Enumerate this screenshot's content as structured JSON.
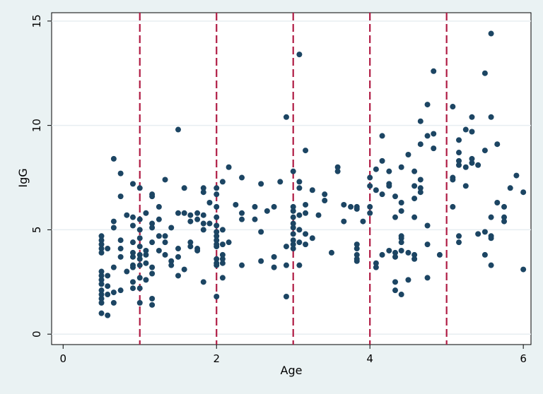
{
  "chart_data": {
    "type": "scatter",
    "xlabel": "Age",
    "ylabel": "IgG",
    "xlim": [
      -0.15,
      6.1
    ],
    "ylim": [
      -0.5,
      15.4
    ],
    "x_ticks": [
      0,
      2,
      4,
      6
    ],
    "y_ticks": [
      0,
      5,
      10,
      15
    ],
    "grid": "horizontal",
    "reference_lines_x": [
      1,
      2,
      3,
      4,
      5
    ],
    "colors": {
      "points": "#1c4563",
      "reference_lines": "#b01c44",
      "plot_background": "#ffffff",
      "outer_background": "#eaf2f3",
      "grid": "#e7eef1"
    },
    "points": [
      [
        0.5,
        4.7
      ],
      [
        0.5,
        4.5
      ],
      [
        0.5,
        4.3
      ],
      [
        0.5,
        4.1
      ],
      [
        0.5,
        3.9
      ],
      [
        0.5,
        3.0
      ],
      [
        0.5,
        2.8
      ],
      [
        0.5,
        2.6
      ],
      [
        0.5,
        2.4
      ],
      [
        0.5,
        2.1
      ],
      [
        0.5,
        1.9
      ],
      [
        0.5,
        1.7
      ],
      [
        0.5,
        1.5
      ],
      [
        0.5,
        1.0
      ],
      [
        0.58,
        4.1
      ],
      [
        0.58,
        2.8
      ],
      [
        0.58,
        2.3
      ],
      [
        0.58,
        1.9
      ],
      [
        0.58,
        0.9
      ],
      [
        0.66,
        8.4
      ],
      [
        0.66,
        5.4
      ],
      [
        0.66,
        5.1
      ],
      [
        0.66,
        3.2
      ],
      [
        0.66,
        2.0
      ],
      [
        0.66,
        1.5
      ],
      [
        0.75,
        7.7
      ],
      [
        0.75,
        6.6
      ],
      [
        0.75,
        4.5
      ],
      [
        0.75,
        4.1
      ],
      [
        0.75,
        3.7
      ],
      [
        0.75,
        2.1
      ],
      [
        0.83,
        5.7
      ],
      [
        0.83,
        3.0
      ],
      [
        0.91,
        7.2
      ],
      [
        0.91,
        5.6
      ],
      [
        0.91,
        5.2
      ],
      [
        0.91,
        4.4
      ],
      [
        0.91,
        3.9
      ],
      [
        0.91,
        3.7
      ],
      [
        0.91,
        3.3
      ],
      [
        0.91,
        3.2
      ],
      [
        0.91,
        2.5
      ],
      [
        0.91,
        2.2
      ],
      [
        1.0,
        7.0
      ],
      [
        1.0,
        5.5
      ],
      [
        1.0,
        5.0
      ],
      [
        1.0,
        4.6
      ],
      [
        1.0,
        4.2
      ],
      [
        1.0,
        3.8
      ],
      [
        1.0,
        3.6
      ],
      [
        1.0,
        3.3
      ],
      [
        1.0,
        2.7
      ],
      [
        1.0,
        2.2
      ],
      [
        1.0,
        1.5
      ],
      [
        1.08,
        5.8
      ],
      [
        1.08,
        4.0
      ],
      [
        1.08,
        3.8
      ],
      [
        1.08,
        3.4
      ],
      [
        1.08,
        2.6
      ],
      [
        1.16,
        6.7
      ],
      [
        1.16,
        6.6
      ],
      [
        1.16,
        5.3
      ],
      [
        1.16,
        5.1
      ],
      [
        1.16,
        4.4
      ],
      [
        1.16,
        3.2
      ],
      [
        1.16,
        2.9
      ],
      [
        1.16,
        1.7
      ],
      [
        1.16,
        1.4
      ],
      [
        1.25,
        6.1
      ],
      [
        1.25,
        5.5
      ],
      [
        1.25,
        4.7
      ],
      [
        1.25,
        4.0
      ],
      [
        1.33,
        7.4
      ],
      [
        1.33,
        4.7
      ],
      [
        1.33,
        4.4
      ],
      [
        1.33,
        3.8
      ],
      [
        1.41,
        5.1
      ],
      [
        1.41,
        3.5
      ],
      [
        1.41,
        3.3
      ],
      [
        1.5,
        9.8
      ],
      [
        1.5,
        5.8
      ],
      [
        1.5,
        4.1
      ],
      [
        1.5,
        3.7
      ],
      [
        1.5,
        2.8
      ],
      [
        1.58,
        7.0
      ],
      [
        1.58,
        5.8
      ],
      [
        1.58,
        3.1
      ],
      [
        1.66,
        5.7
      ],
      [
        1.66,
        4.4
      ],
      [
        1.66,
        4.2
      ],
      [
        1.66,
        5.4
      ],
      [
        1.75,
        5.8
      ],
      [
        1.75,
        5.5
      ],
      [
        1.75,
        4.1
      ],
      [
        1.75,
        4.0
      ],
      [
        1.83,
        7.0
      ],
      [
        1.83,
        6.8
      ],
      [
        1.83,
        5.7
      ],
      [
        1.83,
        5.3
      ],
      [
        1.83,
        5.0
      ],
      [
        1.83,
        2.5
      ],
      [
        1.91,
        6.3
      ],
      [
        1.91,
        5.3
      ],
      [
        2.0,
        7.0
      ],
      [
        2.0,
        6.7
      ],
      [
        2.0,
        6.1
      ],
      [
        2.0,
        5.6
      ],
      [
        2.0,
        5.2
      ],
      [
        2.0,
        4.9
      ],
      [
        2.0,
        4.7
      ],
      [
        2.0,
        4.5
      ],
      [
        2.0,
        4.3
      ],
      [
        2.0,
        4.2
      ],
      [
        2.0,
        3.6
      ],
      [
        2.0,
        3.4
      ],
      [
        2.0,
        3.3
      ],
      [
        2.0,
        1.8
      ],
      [
        2.08,
        7.3
      ],
      [
        2.08,
        5.0
      ],
      [
        2.08,
        4.3
      ],
      [
        2.08,
        3.8
      ],
      [
        2.08,
        3.6
      ],
      [
        2.08,
        3.4
      ],
      [
        2.08,
        2.7
      ],
      [
        2.16,
        8.0
      ],
      [
        2.16,
        4.4
      ],
      [
        2.25,
        6.2
      ],
      [
        2.33,
        7.5
      ],
      [
        2.33,
        5.8
      ],
      [
        2.33,
        5.5
      ],
      [
        2.33,
        3.3
      ],
      [
        2.5,
        6.1
      ],
      [
        2.5,
        5.5
      ],
      [
        2.58,
        7.2
      ],
      [
        2.58,
        4.9
      ],
      [
        2.58,
        3.5
      ],
      [
        2.66,
        5.9
      ],
      [
        2.75,
        6.1
      ],
      [
        2.75,
        3.7
      ],
      [
        2.75,
        3.2
      ],
      [
        2.83,
        7.3
      ],
      [
        2.91,
        10.4
      ],
      [
        2.91,
        4.2
      ],
      [
        2.91,
        3.3
      ],
      [
        2.91,
        1.8
      ],
      [
        3.0,
        7.8
      ],
      [
        3.0,
        6.1
      ],
      [
        3.0,
        5.9
      ],
      [
        3.0,
        5.6
      ],
      [
        3.0,
        5.3
      ],
      [
        3.0,
        5.1
      ],
      [
        3.0,
        4.8
      ],
      [
        3.0,
        4.5
      ],
      [
        3.0,
        4.3
      ],
      [
        3.0,
        4.1
      ],
      [
        3.08,
        13.4
      ],
      [
        3.08,
        7.3
      ],
      [
        3.08,
        7.0
      ],
      [
        3.08,
        5.7
      ],
      [
        3.08,
        5.0
      ],
      [
        3.08,
        4.4
      ],
      [
        3.08,
        3.3
      ],
      [
        3.16,
        8.8
      ],
      [
        3.16,
        6.2
      ],
      [
        3.16,
        5.8
      ],
      [
        3.16,
        4.8
      ],
      [
        3.16,
        4.3
      ],
      [
        3.25,
        6.9
      ],
      [
        3.25,
        4.6
      ],
      [
        3.33,
        5.7
      ],
      [
        3.41,
        6.7
      ],
      [
        3.41,
        6.4
      ],
      [
        3.5,
        3.9
      ],
      [
        3.58,
        8.0
      ],
      [
        3.58,
        7.8
      ],
      [
        3.66,
        6.2
      ],
      [
        3.66,
        5.4
      ],
      [
        3.75,
        6.1
      ],
      [
        3.83,
        6.1
      ],
      [
        3.83,
        6.0
      ],
      [
        3.83,
        4.3
      ],
      [
        3.83,
        4.1
      ],
      [
        3.83,
        3.8
      ],
      [
        3.83,
        3.6
      ],
      [
        3.83,
        3.5
      ],
      [
        3.91,
        5.4
      ],
      [
        4.0,
        7.5
      ],
      [
        4.0,
        7.1
      ],
      [
        4.0,
        6.1
      ],
      [
        4.0,
        5.8
      ],
      [
        4.08,
        7.9
      ],
      [
        4.08,
        6.9
      ],
      [
        4.08,
        3.4
      ],
      [
        4.08,
        3.2
      ],
      [
        4.16,
        9.5
      ],
      [
        4.16,
        8.3
      ],
      [
        4.16,
        6.7
      ],
      [
        4.16,
        3.8
      ],
      [
        4.25,
        7.8
      ],
      [
        4.25,
        7.2
      ],
      [
        4.25,
        7.1
      ],
      [
        4.25,
        4.0
      ],
      [
        4.33,
        6.6
      ],
      [
        4.33,
        5.6
      ],
      [
        4.33,
        3.9
      ],
      [
        4.33,
        3.7
      ],
      [
        4.33,
        2.5
      ],
      [
        4.33,
        2.1
      ],
      [
        4.41,
        8.0
      ],
      [
        4.41,
        6.3
      ],
      [
        4.41,
        5.9
      ],
      [
        4.41,
        4.7
      ],
      [
        4.41,
        4.6
      ],
      [
        4.41,
        4.4
      ],
      [
        4.41,
        4.0
      ],
      [
        4.41,
        1.9
      ],
      [
        4.5,
        8.6
      ],
      [
        4.5,
        3.9
      ],
      [
        4.5,
        2.6
      ],
      [
        4.58,
        7.8
      ],
      [
        4.58,
        7.1
      ],
      [
        4.58,
        6.5
      ],
      [
        4.58,
        5.6
      ],
      [
        4.58,
        3.8
      ],
      [
        4.58,
        3.6
      ],
      [
        4.66,
        10.2
      ],
      [
        4.66,
        9.1
      ],
      [
        4.66,
        7.4
      ],
      [
        4.66,
        7.0
      ],
      [
        4.66,
        6.8
      ],
      [
        4.75,
        11.0
      ],
      [
        4.75,
        9.5
      ],
      [
        4.75,
        5.2
      ],
      [
        4.75,
        4.3
      ],
      [
        4.75,
        2.7
      ],
      [
        4.83,
        12.6
      ],
      [
        4.83,
        9.6
      ],
      [
        4.83,
        8.9
      ],
      [
        4.91,
        3.8
      ],
      [
        5.08,
        10.9
      ],
      [
        5.08,
        7.5
      ],
      [
        5.08,
        7.4
      ],
      [
        5.08,
        6.1
      ],
      [
        5.16,
        9.3
      ],
      [
        5.16,
        8.7
      ],
      [
        5.16,
        8.3
      ],
      [
        5.16,
        8.1
      ],
      [
        5.16,
        4.7
      ],
      [
        5.16,
        4.4
      ],
      [
        5.25,
        9.8
      ],
      [
        5.25,
        8.0
      ],
      [
        5.25,
        7.1
      ],
      [
        5.33,
        10.4
      ],
      [
        5.33,
        9.7
      ],
      [
        5.33,
        8.4
      ],
      [
        5.33,
        8.2
      ],
      [
        5.41,
        8.1
      ],
      [
        5.41,
        4.8
      ],
      [
        5.5,
        12.5
      ],
      [
        5.5,
        8.8
      ],
      [
        5.5,
        4.9
      ],
      [
        5.5,
        3.8
      ],
      [
        5.58,
        14.4
      ],
      [
        5.58,
        10.4
      ],
      [
        5.58,
        5.6
      ],
      [
        5.58,
        4.7
      ],
      [
        5.58,
        4.6
      ],
      [
        5.58,
        3.3
      ],
      [
        5.66,
        9.1
      ],
      [
        5.66,
        6.3
      ],
      [
        5.75,
        6.1
      ],
      [
        5.75,
        5.6
      ],
      [
        5.75,
        5.4
      ],
      [
        5.83,
        7.0
      ],
      [
        5.91,
        7.6
      ],
      [
        6.0,
        6.8
      ],
      [
        6.0,
        3.1
      ]
    ]
  }
}
